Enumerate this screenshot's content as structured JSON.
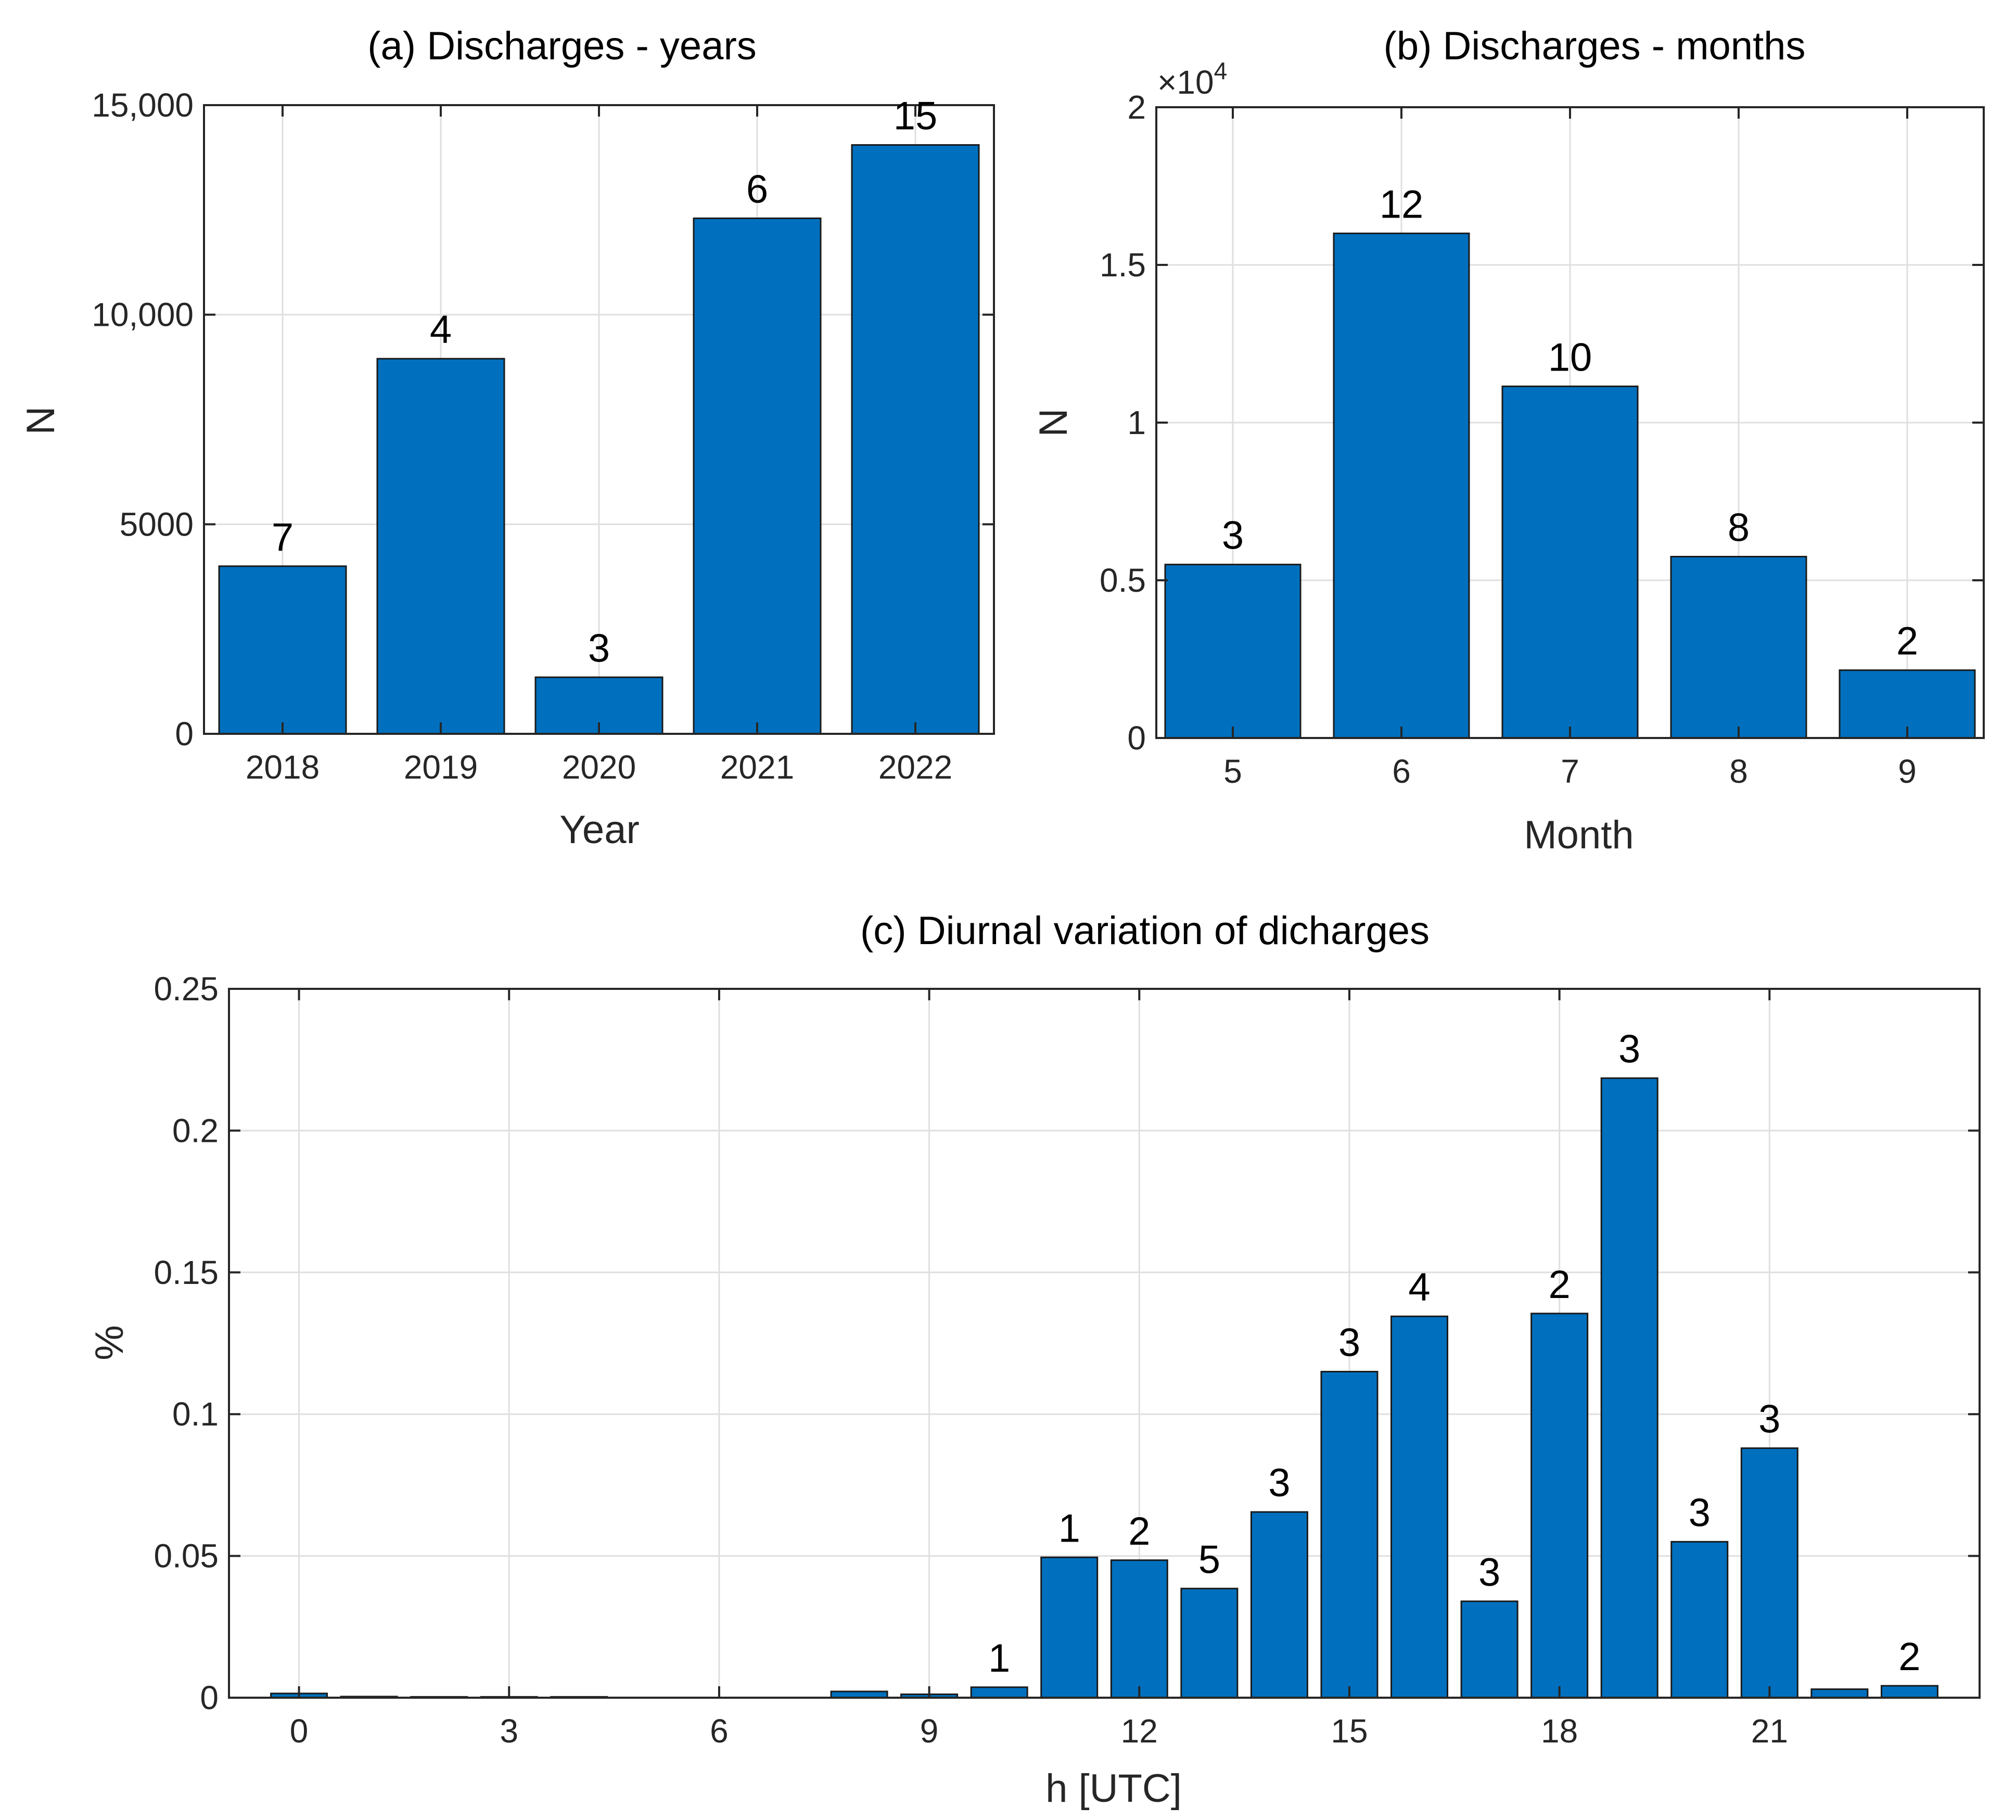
{
  "chart_data": [
    {
      "id": "a",
      "type": "bar",
      "title": "(a) Discharges - years",
      "xlabel": "Year",
      "ylabel": "N",
      "categories": [
        "2018",
        "2019",
        "2020",
        "2021",
        "2022"
      ],
      "values": [
        4000,
        8950,
        1350,
        12300,
        14050
      ],
      "bar_labels": [
        "7",
        "4",
        "3",
        "6",
        "15"
      ],
      "ylim": [
        0,
        15000
      ],
      "yticks": [
        0,
        5000,
        10000,
        15000
      ],
      "ytick_labels": [
        "0",
        "5000",
        "10,000",
        "15,000"
      ],
      "grid": true,
      "color": "#0070BE"
    },
    {
      "id": "b",
      "type": "bar",
      "title": "(b) Discharges - months",
      "xlabel": "Month",
      "ylabel": "N",
      "categories": [
        "5",
        "6",
        "7",
        "8",
        "9"
      ],
      "values": [
        5500,
        16000,
        11150,
        5750,
        2150
      ],
      "bar_labels": [
        "3",
        "12",
        "10",
        "8",
        "2"
      ],
      "ylim": [
        0,
        20000
      ],
      "yticks": [
        0,
        5000,
        10000,
        15000,
        20000
      ],
      "ytick_labels": [
        "0",
        "0.5",
        "1",
        "1.5",
        "2"
      ],
      "exponent_prefix": "×10",
      "exponent_power": "4",
      "grid": true,
      "color": "#0070BE"
    },
    {
      "id": "c",
      "type": "bar",
      "title": "(c) Diurnal variation of dicharges",
      "xlabel": "h [UTC]",
      "ylabel": "%",
      "x": [
        0,
        1,
        2,
        3,
        4,
        5,
        6,
        7,
        8,
        9,
        10,
        11,
        12,
        13,
        14,
        15,
        16,
        17,
        18,
        19,
        20,
        21,
        22,
        23
      ],
      "values": [
        0.0015,
        0.0004,
        0.0003,
        0.0003,
        0.0003,
        0,
        0,
        0,
        0.0022,
        0.0012,
        0.0037,
        0.0495,
        0.0485,
        0.0385,
        0.0655,
        0.115,
        0.1345,
        0.034,
        0.1355,
        0.2185,
        0.055,
        0.088,
        0.003,
        0.0042
      ],
      "bar_labels": [
        "",
        "",
        "",
        "",
        "",
        "",
        "",
        "",
        "",
        "",
        "1",
        "1",
        "2",
        "5",
        "3",
        "3",
        "4",
        "3",
        "2",
        "3",
        "3",
        "3",
        "",
        "2"
      ],
      "xlim": [
        -1,
        24
      ],
      "xticks": [
        0,
        3,
        6,
        9,
        12,
        15,
        18,
        21
      ],
      "ylim": [
        0,
        0.25
      ],
      "yticks": [
        0,
        0.05,
        0.1,
        0.15,
        0.2,
        0.25
      ],
      "ytick_labels": [
        "0",
        "0.05",
        "0.1",
        "0.15",
        "0.2",
        "0.25"
      ],
      "grid": true,
      "color": "#0070BE"
    }
  ]
}
